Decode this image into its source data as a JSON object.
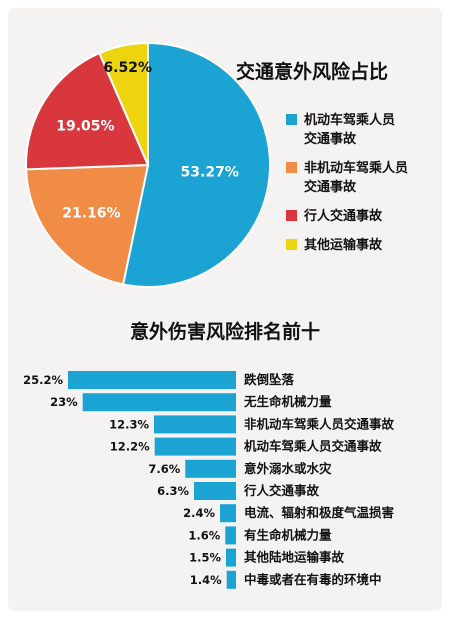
{
  "chart_data": [
    {
      "type": "pie",
      "title": "交通意外风险占比",
      "categories": [
        "机动车驾乘人员交通事故",
        "非机动车驾乘人员交通事故",
        "行人交通事故",
        "其他运输事故"
      ],
      "legend_lines": [
        [
          "机动车驾乘人员",
          "交通事故"
        ],
        [
          "非机动车驾乘人员",
          "交通事故"
        ],
        [
          "行人交通事故"
        ],
        [
          "其他运输事故"
        ]
      ],
      "values": [
        53.27,
        21.16,
        19.05,
        6.52
      ],
      "value_labels": [
        "53.27%",
        "21.16%",
        "19.05%",
        "6.52%"
      ],
      "colors": [
        "#1ba3d4",
        "#f08c45",
        "#d8383d",
        "#ecd50f"
      ],
      "legend_position": "right"
    },
    {
      "type": "bar",
      "orientation": "horizontal",
      "title": "意外伤害风险排名前十",
      "categories": [
        "跌倒坠落",
        "无生命机械力量",
        "非机动车驾乘人员交通事故",
        "机动车驾乘人员交通事故",
        "意外溺水或水灾",
        "行人交通事故",
        "电流、辐射和极度气温损害",
        "有生命机械力量",
        "其他陆地运输事故",
        "中毒或者在有毒的环境中"
      ],
      "values": [
        25.2,
        23,
        12.3,
        12.2,
        7.6,
        6.3,
        2.4,
        1.6,
        1.5,
        1.4
      ],
      "value_labels": [
        "25.2%",
        "23%",
        "12.3%",
        "12.2%",
        "7.6%",
        "6.3%",
        "2.4%",
        "1.6%",
        "1.5%",
        "1.4%"
      ],
      "unit": "%",
      "bar_color": "#1ba3d4"
    }
  ]
}
